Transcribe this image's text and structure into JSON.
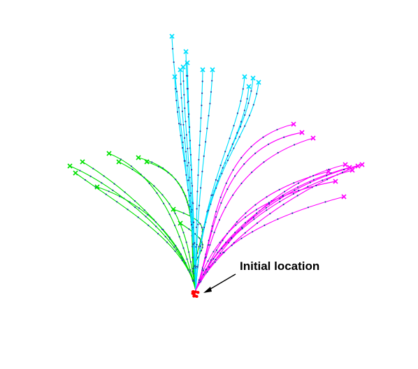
{
  "annotation": {
    "text": "Initial location"
  },
  "colors": {
    "left_group": "#00e000",
    "middle_group": "#00e0ff",
    "right_group": "#ff00ff",
    "origin": "#ff0000",
    "markers": "#1f3fa0",
    "arrow": "#000000"
  },
  "trajectory_groups": [
    {
      "id": "left",
      "color_key": "left_group",
      "count": 10
    },
    {
      "id": "middle",
      "color_key": "middle_group",
      "count": 12
    },
    {
      "id": "right",
      "color_key": "right_group",
      "count": 11
    }
  ]
}
